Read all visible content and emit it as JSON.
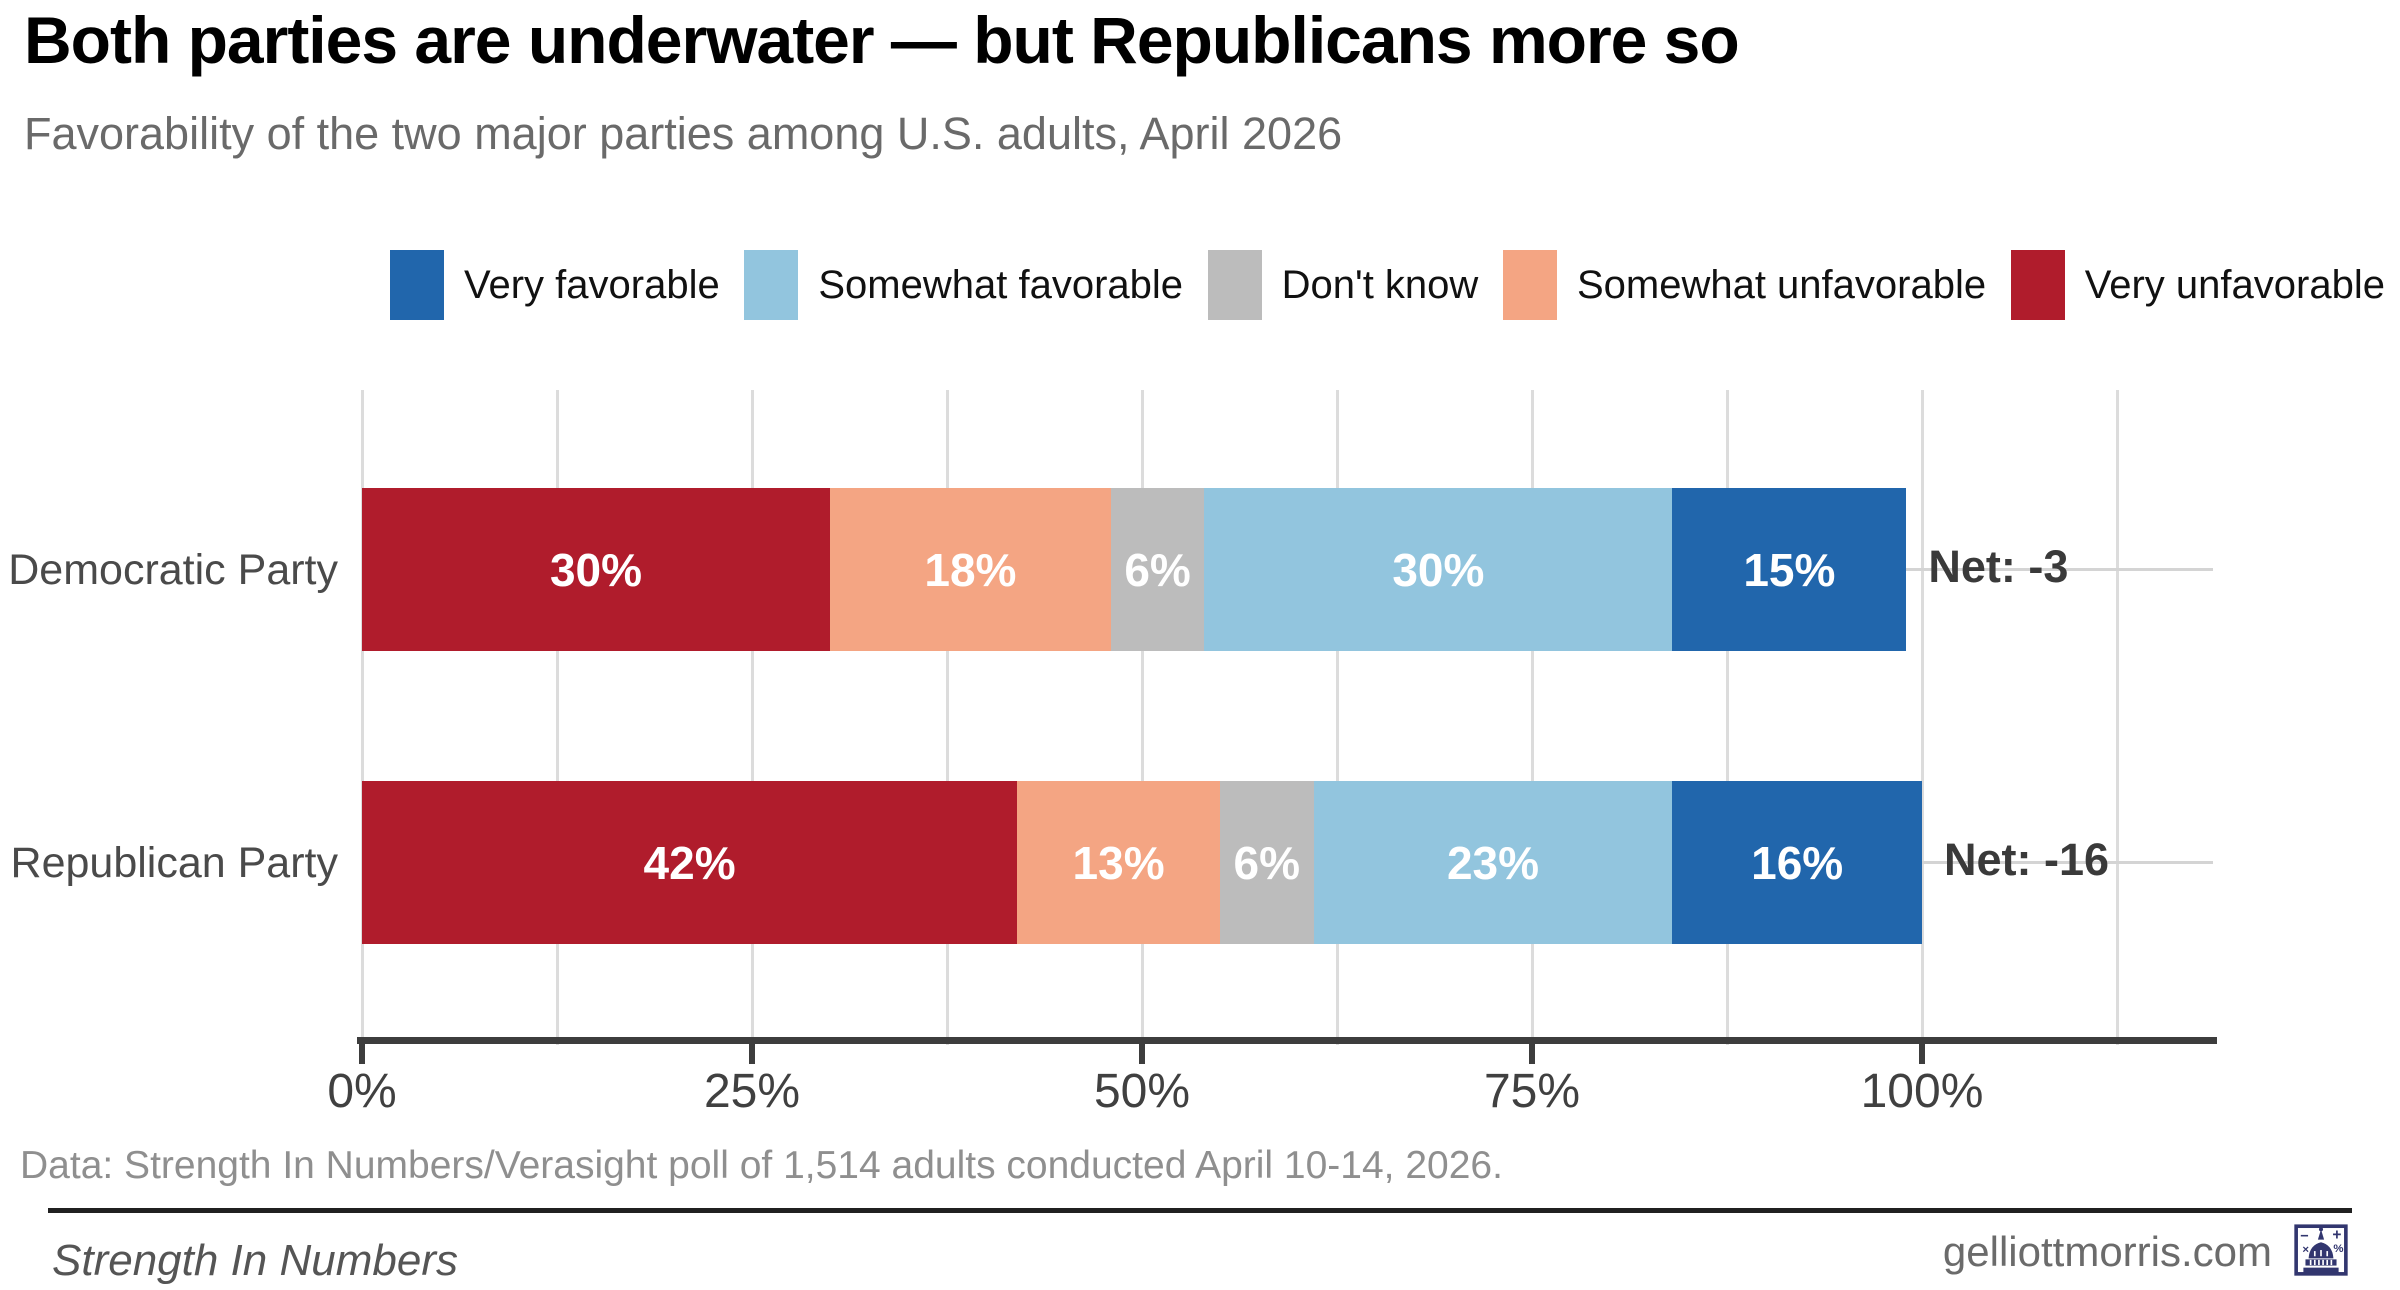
{
  "header": {
    "title": "Both parties are underwater — but Republicans more so",
    "subtitle": "Favorability of the two major parties among U.S. adults, April 2026"
  },
  "chart_data": {
    "type": "bar",
    "stacked": true,
    "orientation": "horizontal",
    "legend": [
      "Very favorable",
      "Somewhat favorable",
      "Don't know",
      "Somewhat unfavorable",
      "Very unfavorable"
    ],
    "colors": {
      "Very favorable": "#2166ac",
      "Somewhat favorable": "#92c5de",
      "Don't know": "#bcbcbc",
      "Somewhat unfavorable": "#f4a583",
      "Very unfavorable": "#b01c2c"
    },
    "segment_order": [
      "Very unfavorable",
      "Somewhat unfavorable",
      "Don't know",
      "Somewhat favorable",
      "Very favorable"
    ],
    "rows": [
      {
        "category": "Democratic Party",
        "values": {
          "Very unfavorable": 30,
          "Somewhat unfavorable": 18,
          "Don't know": 6,
          "Somewhat favorable": 30,
          "Very favorable": 15
        },
        "net_label": "Net: -3"
      },
      {
        "category": "Republican Party",
        "values": {
          "Very unfavorable": 42,
          "Somewhat unfavorable": 13,
          "Don't know": 6,
          "Somewhat favorable": 23,
          "Very favorable": 16
        },
        "net_label": "Net: -16"
      }
    ],
    "x_axis": {
      "range": [
        0,
        100
      ],
      "ticks": [
        0,
        25,
        50,
        75,
        100
      ],
      "tick_labels": [
        "0%",
        "25%",
        "50%",
        "75%",
        "100%"
      ],
      "minor_gridline_step_pct": 12.5,
      "grid": true
    },
    "gridline_color": "#dcdcdc",
    "axis_color": "#3d3d3d"
  },
  "footer": {
    "note": "Data: Strength In Numbers/Verasight poll of 1,514 adults conducted April 10-14, 2026.",
    "brand": "Strength In Numbers",
    "site": "gelliottmorris.com",
    "logo_icon": "capitol-math-logo",
    "logo_color": "#32366f"
  }
}
